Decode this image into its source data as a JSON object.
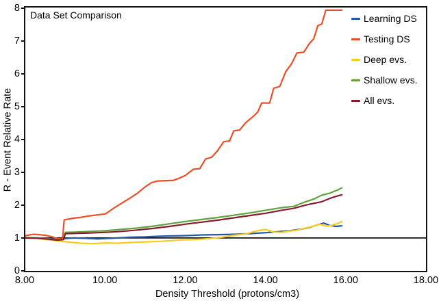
{
  "figure": {
    "background": "#ffffff",
    "frame_color": "#111111"
  },
  "chart_data": {
    "type": "line",
    "title": "Data Set Comparison",
    "xlabel": "Density Threshold (protons/cm3)",
    "ylabel": "R - Event Relative Rate",
    "xlim": [
      8,
      18
    ],
    "ylim": [
      0,
      8
    ],
    "grid": false,
    "legend_position": "upper right inside",
    "xticks": [
      {
        "value": 8,
        "label": "8.00"
      },
      {
        "value": 10,
        "label": "10.00"
      },
      {
        "value": 12,
        "label": "12.00"
      },
      {
        "value": 14,
        "label": "14.00"
      },
      {
        "value": 16,
        "label": "16.00"
      },
      {
        "value": 18,
        "label": "18.00"
      }
    ],
    "yticks": [
      {
        "value": 0,
        "label": "0"
      },
      {
        "value": 1,
        "label": "1"
      },
      {
        "value": 2,
        "label": "2"
      },
      {
        "value": 3,
        "label": "3"
      },
      {
        "value": 4,
        "label": "4"
      },
      {
        "value": 5,
        "label": "5"
      },
      {
        "value": 6,
        "label": "6"
      },
      {
        "value": 7,
        "label": "7"
      },
      {
        "value": 8,
        "label": "8"
      }
    ],
    "reference_line": {
      "y": 1,
      "color": "#111111",
      "x_start": 8,
      "x_end": 18
    },
    "series": [
      {
        "name": "Learning DS",
        "color": "#2257a4",
        "points": [
          [
            8.0,
            1.0
          ],
          [
            8.3,
            1.0
          ],
          [
            8.6,
            0.98
          ],
          [
            8.8,
            0.95
          ],
          [
            9.0,
            0.98
          ],
          [
            9.2,
            1.0
          ],
          [
            9.5,
            0.99
          ],
          [
            9.8,
            0.97
          ],
          [
            10.0,
            0.98
          ],
          [
            10.3,
            1.0
          ],
          [
            10.6,
            1.02
          ],
          [
            11.0,
            1.03
          ],
          [
            11.3,
            1.05
          ],
          [
            11.6,
            1.06
          ],
          [
            12.0,
            1.07
          ],
          [
            12.4,
            1.09
          ],
          [
            12.8,
            1.1
          ],
          [
            13.2,
            1.11
          ],
          [
            13.6,
            1.13
          ],
          [
            14.0,
            1.16
          ],
          [
            14.3,
            1.19
          ],
          [
            14.6,
            1.22
          ],
          [
            14.9,
            1.27
          ],
          [
            15.1,
            1.32
          ],
          [
            15.3,
            1.4
          ],
          [
            15.45,
            1.45
          ],
          [
            15.6,
            1.38
          ],
          [
            15.75,
            1.35
          ],
          [
            15.9,
            1.37
          ]
        ]
      },
      {
        "name": "Testing DS",
        "color": "#ee4e26",
        "points": [
          [
            8.0,
            1.07
          ],
          [
            8.2,
            1.11
          ],
          [
            8.35,
            1.1
          ],
          [
            8.5,
            1.08
          ],
          [
            8.65,
            1.04
          ],
          [
            8.8,
            0.98
          ],
          [
            8.93,
            0.97
          ],
          [
            8.97,
            1.55
          ],
          [
            9.2,
            1.6
          ],
          [
            9.4,
            1.63
          ],
          [
            9.6,
            1.67
          ],
          [
            9.8,
            1.7
          ],
          [
            10.0,
            1.73
          ],
          [
            10.2,
            1.9
          ],
          [
            10.4,
            2.05
          ],
          [
            10.6,
            2.2
          ],
          [
            10.8,
            2.36
          ],
          [
            11.0,
            2.56
          ],
          [
            11.15,
            2.68
          ],
          [
            11.3,
            2.73
          ],
          [
            11.5,
            2.74
          ],
          [
            11.7,
            2.75
          ],
          [
            11.85,
            2.82
          ],
          [
            12.0,
            2.9
          ],
          [
            12.1,
            3.0
          ],
          [
            12.2,
            3.09
          ],
          [
            12.35,
            3.1
          ],
          [
            12.5,
            3.4
          ],
          [
            12.65,
            3.45
          ],
          [
            12.8,
            3.65
          ],
          [
            12.95,
            3.92
          ],
          [
            13.1,
            3.95
          ],
          [
            13.2,
            4.25
          ],
          [
            13.35,
            4.28
          ],
          [
            13.5,
            4.5
          ],
          [
            13.65,
            4.65
          ],
          [
            13.8,
            4.82
          ],
          [
            13.9,
            5.1
          ],
          [
            14.1,
            5.1
          ],
          [
            14.2,
            5.55
          ],
          [
            14.35,
            5.6
          ],
          [
            14.5,
            6.05
          ],
          [
            14.65,
            6.3
          ],
          [
            14.78,
            6.62
          ],
          [
            14.95,
            6.64
          ],
          [
            15.1,
            6.92
          ],
          [
            15.2,
            7.05
          ],
          [
            15.3,
            7.45
          ],
          [
            15.4,
            7.5
          ],
          [
            15.5,
            7.92
          ],
          [
            15.9,
            7.92
          ]
        ]
      },
      {
        "name": "Deep evs.",
        "color": "#f9cb1b",
        "points": [
          [
            8.0,
            1.0
          ],
          [
            8.3,
            0.99
          ],
          [
            8.6,
            0.94
          ],
          [
            8.9,
            0.9
          ],
          [
            9.1,
            0.87
          ],
          [
            9.4,
            0.84
          ],
          [
            9.7,
            0.83
          ],
          [
            10.0,
            0.85
          ],
          [
            10.3,
            0.84
          ],
          [
            10.6,
            0.86
          ],
          [
            11.0,
            0.88
          ],
          [
            11.4,
            0.9
          ],
          [
            11.8,
            0.93
          ],
          [
            12.2,
            0.95
          ],
          [
            12.6,
            0.98
          ],
          [
            12.9,
            1.02
          ],
          [
            13.2,
            1.08
          ],
          [
            13.5,
            1.12
          ],
          [
            13.8,
            1.22
          ],
          [
            14.0,
            1.26
          ],
          [
            14.2,
            1.18
          ],
          [
            14.4,
            1.17
          ],
          [
            14.6,
            1.21
          ],
          [
            14.8,
            1.24
          ],
          [
            15.0,
            1.3
          ],
          [
            15.2,
            1.36
          ],
          [
            15.35,
            1.42
          ],
          [
            15.5,
            1.36
          ],
          [
            15.65,
            1.38
          ],
          [
            15.8,
            1.44
          ],
          [
            15.9,
            1.5
          ]
        ]
      },
      {
        "name": "Shallow evs.",
        "color": "#5da23a",
        "points": [
          [
            8.0,
            1.01
          ],
          [
            8.3,
            1.0
          ],
          [
            8.6,
            0.97
          ],
          [
            8.8,
            0.94
          ],
          [
            8.95,
            0.96
          ],
          [
            9.0,
            1.17
          ],
          [
            9.3,
            1.18
          ],
          [
            9.6,
            1.2
          ],
          [
            10.0,
            1.22
          ],
          [
            10.4,
            1.26
          ],
          [
            10.8,
            1.3
          ],
          [
            11.2,
            1.36
          ],
          [
            11.6,
            1.43
          ],
          [
            12.0,
            1.5
          ],
          [
            12.4,
            1.56
          ],
          [
            12.8,
            1.62
          ],
          [
            13.2,
            1.69
          ],
          [
            13.6,
            1.76
          ],
          [
            14.0,
            1.84
          ],
          [
            14.4,
            1.92
          ],
          [
            14.7,
            1.96
          ],
          [
            15.0,
            2.1
          ],
          [
            15.2,
            2.18
          ],
          [
            15.4,
            2.3
          ],
          [
            15.6,
            2.36
          ],
          [
            15.8,
            2.46
          ],
          [
            15.9,
            2.52
          ]
        ]
      },
      {
        "name": "All evs.",
        "color": "#871b2d",
        "points": [
          [
            8.0,
            1.0
          ],
          [
            8.3,
            0.99
          ],
          [
            8.6,
            0.96
          ],
          [
            8.8,
            0.93
          ],
          [
            8.95,
            0.95
          ],
          [
            9.0,
            1.13
          ],
          [
            9.3,
            1.14
          ],
          [
            9.6,
            1.15
          ],
          [
            10.0,
            1.17
          ],
          [
            10.4,
            1.2
          ],
          [
            10.8,
            1.24
          ],
          [
            11.2,
            1.29
          ],
          [
            11.6,
            1.35
          ],
          [
            12.0,
            1.42
          ],
          [
            12.4,
            1.48
          ],
          [
            12.8,
            1.54
          ],
          [
            13.2,
            1.61
          ],
          [
            13.6,
            1.68
          ],
          [
            14.0,
            1.75
          ],
          [
            14.4,
            1.84
          ],
          [
            14.7,
            1.9
          ],
          [
            15.0,
            2.0
          ],
          [
            15.2,
            2.05
          ],
          [
            15.4,
            2.1
          ],
          [
            15.6,
            2.2
          ],
          [
            15.75,
            2.26
          ],
          [
            15.9,
            2.31
          ]
        ]
      }
    ]
  }
}
